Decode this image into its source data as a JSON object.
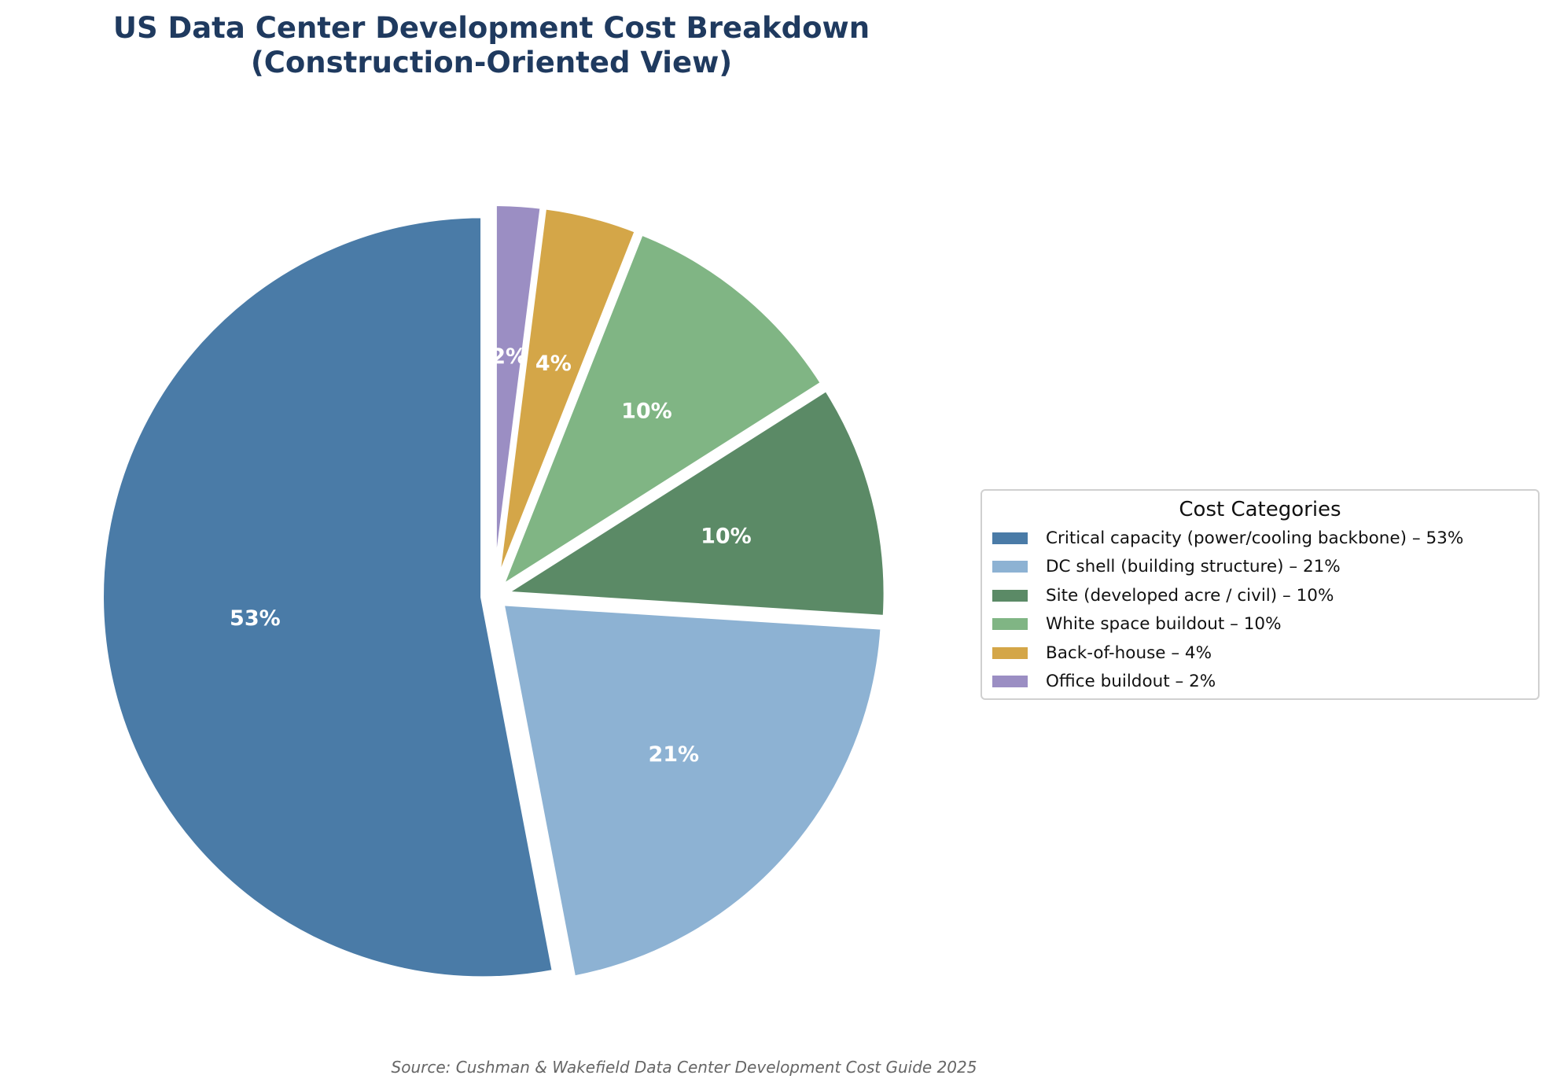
{
  "title_lines": [
    "US Data Center Development Cost Breakdown",
    "(Construction-Oriented View)"
  ],
  "source": "Source: Cushman & Wakefield Data Center Development Cost Guide 2025",
  "legend": {
    "title": "Cost Categories",
    "items": [
      {
        "label": "Critical capacity (power/cooling backbone) – 53%",
        "color": "#4a7ba7"
      },
      {
        "label": "DC shell (building structure) – 21%",
        "color": "#8db2d3"
      },
      {
        "label": "Site (developed acre / civil) – 10%",
        "color": "#5b8a66"
      },
      {
        "label": "White space buildout – 10%",
        "color": "#80b584"
      },
      {
        "label": "Back-of-house – 4%",
        "color": "#d4a648"
      },
      {
        "label": "Office buildout – 2%",
        "color": "#9b8ec3"
      }
    ]
  },
  "chart_data": {
    "type": "pie",
    "title": "US Data Center Development Cost Breakdown (Construction-Oriented View)",
    "start_angle_deg": 90,
    "direction": "counterclockwise",
    "slices": [
      {
        "name": "Critical capacity (power/cooling backbone)",
        "value": 53,
        "label": "53%",
        "color": "#4a7ba7"
      },
      {
        "name": "DC shell (building structure)",
        "value": 21,
        "label": "21%",
        "color": "#8db2d3"
      },
      {
        "name": "Site (developed acre / civil)",
        "value": 10,
        "label": "10%",
        "color": "#5b8a66"
      },
      {
        "name": "White space buildout",
        "value": 10,
        "label": "10%",
        "color": "#80b584"
      },
      {
        "name": "Back-of-house",
        "value": 4,
        "label": "4%",
        "color": "#d4a648"
      },
      {
        "name": "Office buildout",
        "value": 2,
        "label": "2%",
        "color": "#9b8ec3"
      }
    ]
  }
}
